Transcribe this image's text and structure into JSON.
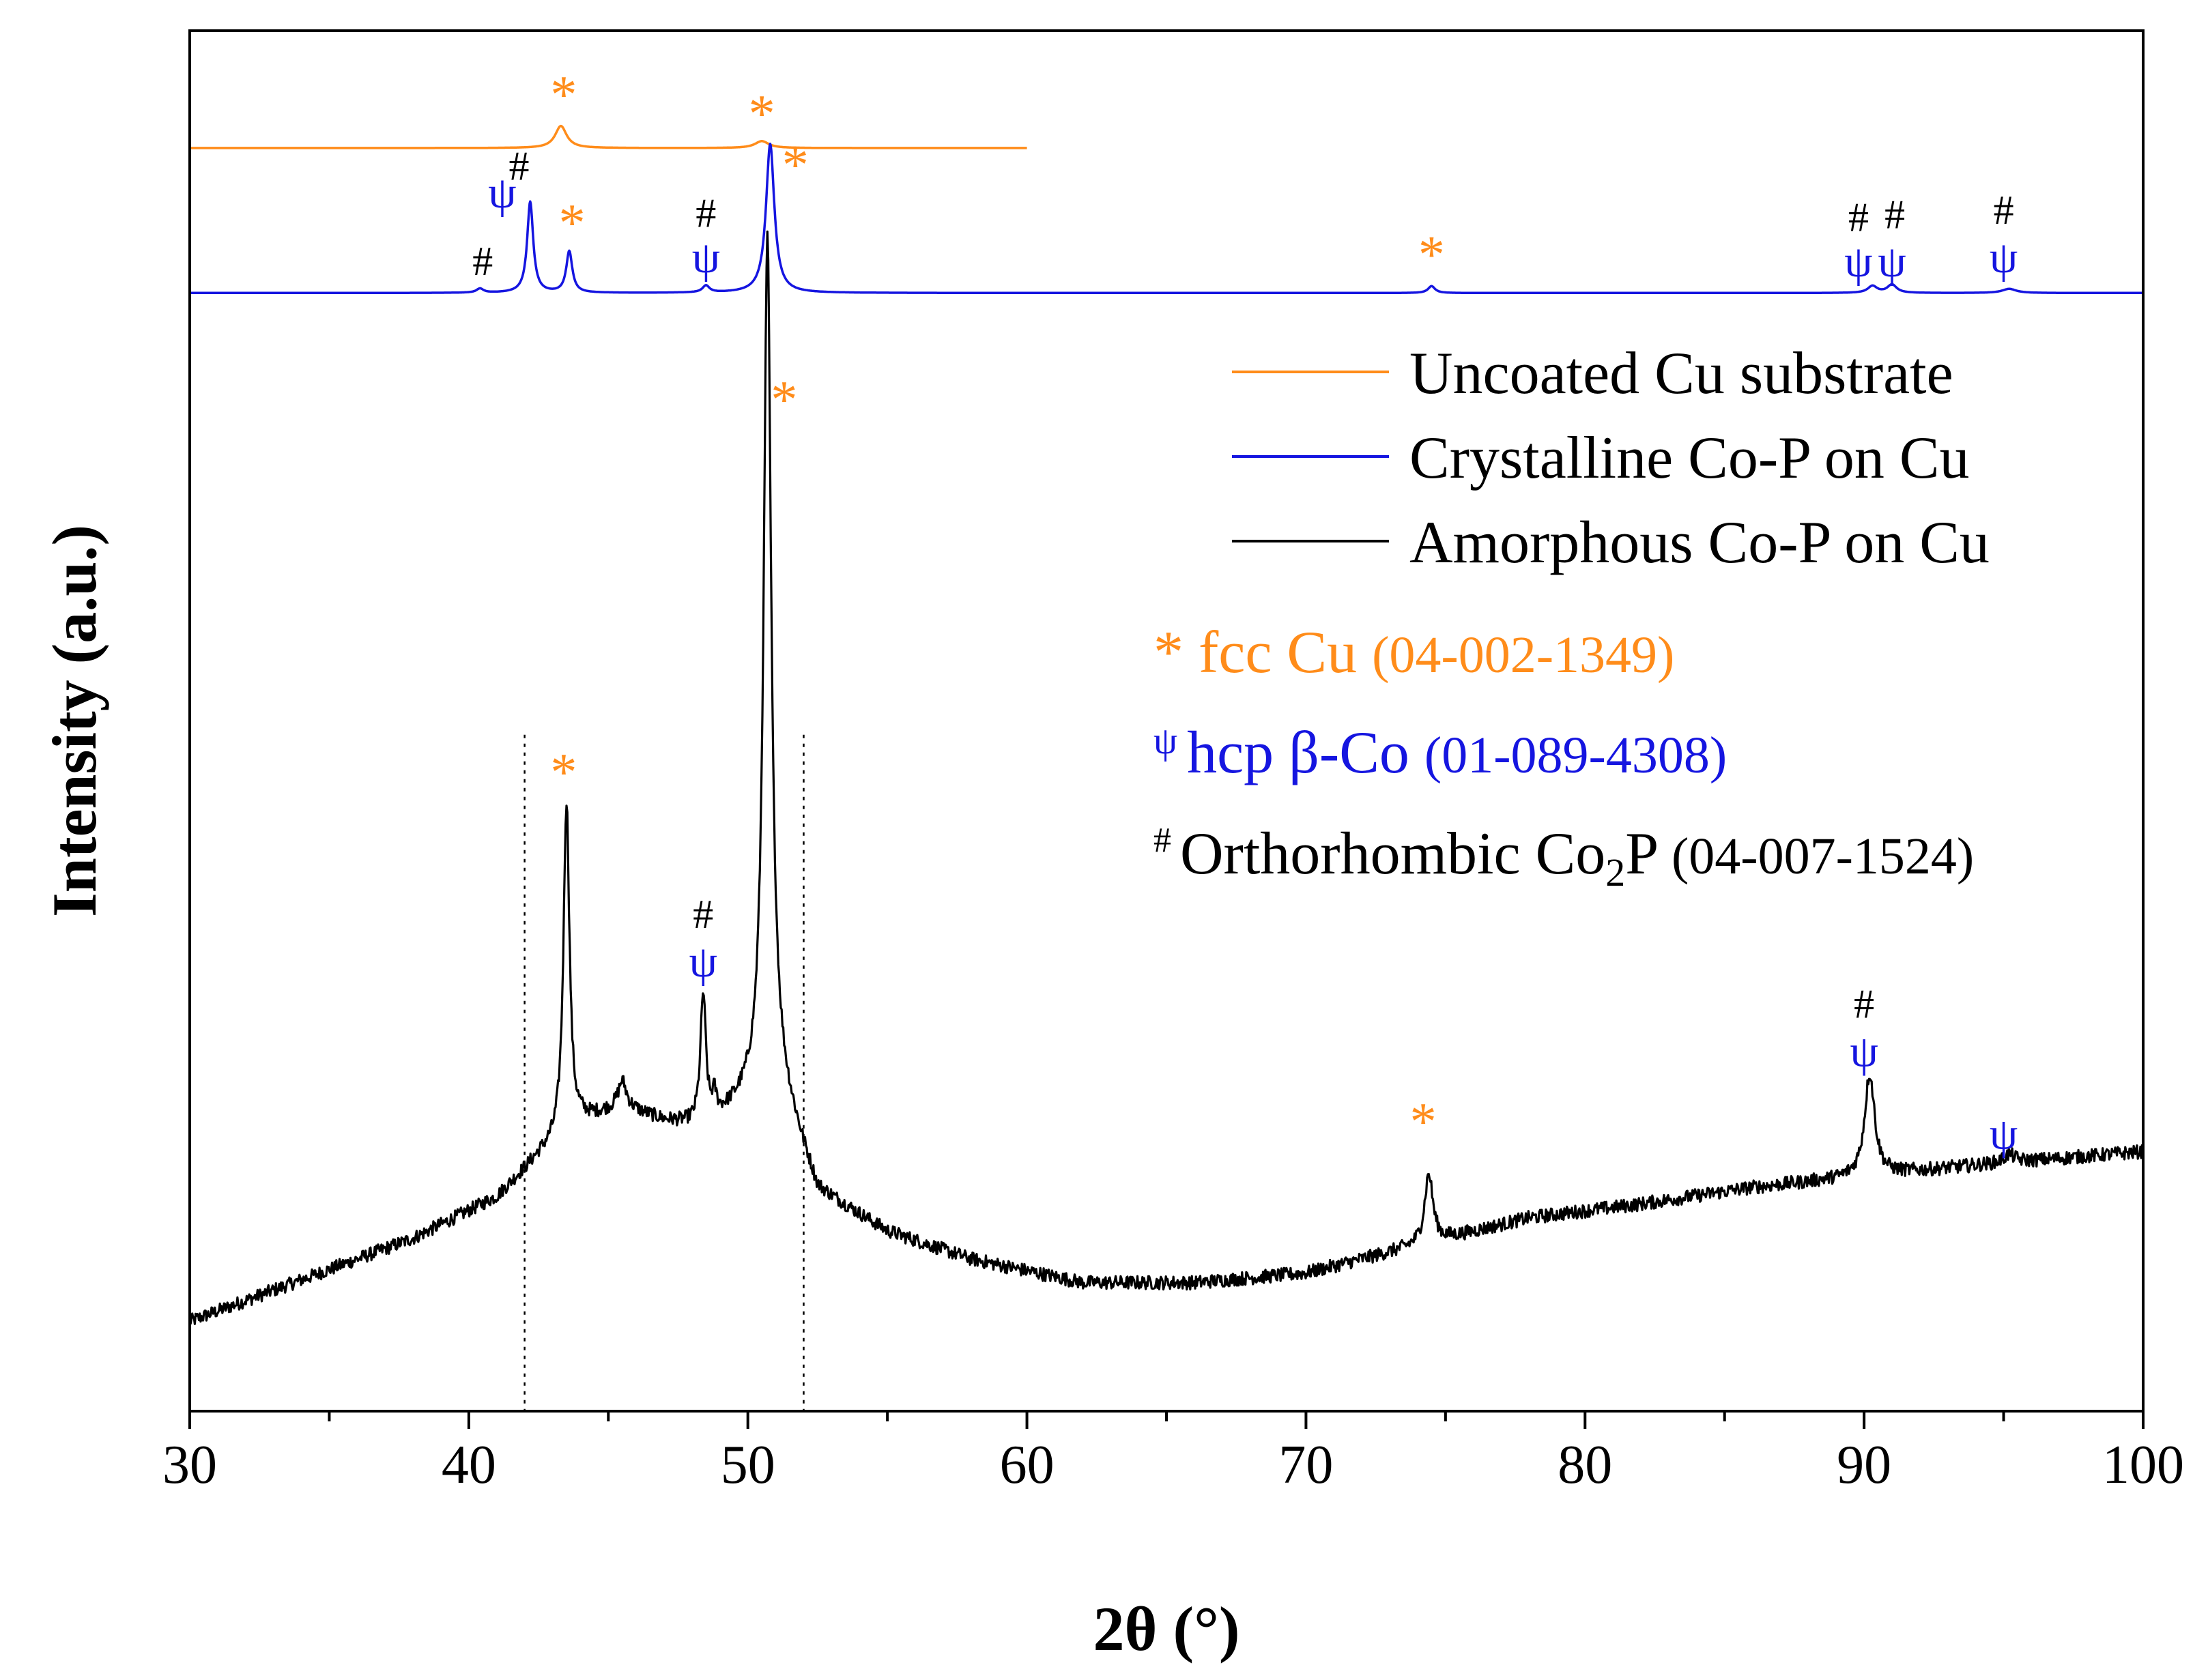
{
  "chart_data": {
    "type": "line",
    "title": "",
    "xlabel": "2θ (°)",
    "ylabel": "Intensity (a.u.)",
    "xlim": [
      30,
      100
    ],
    "x_ticks": [
      30,
      40,
      50,
      60,
      70,
      80,
      90,
      100
    ],
    "tick_labels": [
      "30",
      "40",
      "50",
      "60",
      "70",
      "80",
      "90",
      "100"
    ],
    "y_ticks_shown": false,
    "grid": false,
    "colors": {
      "cu": "#ff8c1a",
      "co": "#1515e0",
      "cop": "#000000"
    },
    "reference_lines": [
      42,
      52
    ],
    "series": [
      {
        "name": "Uncoated Cu substrate",
        "color": "#ff8c1a",
        "x_range": [
          30,
          60
        ],
        "baseline": 0.915,
        "peaks": [
          {
            "x": 43.3,
            "h": 0.016,
            "w": 0.25
          },
          {
            "x": 50.5,
            "h": 0.005,
            "w": 0.3
          }
        ]
      },
      {
        "name": "Crystalline Co-P on Cu",
        "color": "#1515e0",
        "x_range": [
          30,
          100
        ],
        "baseline": 0.81,
        "peaks": [
          {
            "x": 40.4,
            "h": 0.003,
            "w": 0.15
          },
          {
            "x": 42.2,
            "h": 0.066,
            "w": 0.13
          },
          {
            "x": 43.6,
            "h": 0.03,
            "w": 0.13
          },
          {
            "x": 48.5,
            "h": 0.005,
            "w": 0.15
          },
          {
            "x": 50.8,
            "h": 0.108,
            "w": 0.18
          },
          {
            "x": 74.5,
            "h": 0.005,
            "w": 0.15
          },
          {
            "x": 90.3,
            "h": 0.005,
            "w": 0.2
          },
          {
            "x": 91.0,
            "h": 0.006,
            "w": 0.2
          },
          {
            "x": 95.2,
            "h": 0.003,
            "w": 0.3
          }
        ]
      },
      {
        "name": "Amorphous Co-P on Cu",
        "color": "#000000",
        "x_range": [
          30,
          100
        ],
        "background": [
          [
            30,
            0.065
          ],
          [
            34,
            0.095
          ],
          [
            38,
            0.125
          ],
          [
            41,
            0.155
          ],
          [
            42.5,
            0.185
          ],
          [
            44,
            0.21
          ],
          [
            45.5,
            0.22
          ],
          [
            47,
            0.21
          ],
          [
            48.5,
            0.205
          ],
          [
            49.5,
            0.22
          ],
          [
            51,
            0.245
          ],
          [
            52.5,
            0.16
          ],
          [
            55,
            0.13
          ],
          [
            58,
            0.11
          ],
          [
            62,
            0.093
          ],
          [
            66,
            0.093
          ],
          [
            70,
            0.1
          ],
          [
            74,
            0.12
          ],
          [
            78,
            0.14
          ],
          [
            82,
            0.15
          ],
          [
            86,
            0.162
          ],
          [
            90,
            0.17
          ],
          [
            94,
            0.178
          ],
          [
            100,
            0.188
          ]
        ],
        "noise": 0.005,
        "peaks": [
          {
            "x": 43.5,
            "h": 0.24,
            "w": 0.13
          },
          {
            "x": 45.5,
            "h": 0.018,
            "w": 0.18
          },
          {
            "x": 48.4,
            "h": 0.095,
            "w": 0.12
          },
          {
            "x": 48.8,
            "h": 0.015,
            "w": 0.1
          },
          {
            "x": 50.7,
            "h": 0.61,
            "w": 0.16
          },
          {
            "x": 74.4,
            "h": 0.05,
            "w": 0.18
          },
          {
            "x": 90.2,
            "h": 0.074,
            "w": 0.22
          },
          {
            "x": 95.2,
            "h": 0.006,
            "w": 0.25
          }
        ]
      }
    ],
    "peak_markers": [
      {
        "x": 43.4,
        "y": 0.941,
        "symbol": "*",
        "phase": "cu"
      },
      {
        "x": 50.5,
        "y": 0.927,
        "symbol": "*",
        "phase": "cu"
      },
      {
        "x": 51.7,
        "y": 0.89,
        "symbol": "*",
        "phase": "cu"
      },
      {
        "x": 41.2,
        "y": 0.872,
        "symbol": "ψ",
        "phase": "co"
      },
      {
        "x": 41.8,
        "y": 0.892,
        "symbol": "#",
        "phase": "cop"
      },
      {
        "x": 43.7,
        "y": 0.848,
        "symbol": "*",
        "phase": "cu"
      },
      {
        "x": 40.5,
        "y": 0.823,
        "symbol": "#",
        "phase": "cop"
      },
      {
        "x": 48.5,
        "y": 0.858,
        "symbol": "#",
        "phase": "cop"
      },
      {
        "x": 48.5,
        "y": 0.825,
        "symbol": "ψ",
        "phase": "co"
      },
      {
        "x": 74.5,
        "y": 0.825,
        "symbol": "*",
        "phase": "cu"
      },
      {
        "x": 89.8,
        "y": 0.855,
        "symbol": "#",
        "phase": "cop"
      },
      {
        "x": 89.8,
        "y": 0.822,
        "symbol": "ψ",
        "phase": "co"
      },
      {
        "x": 91.1,
        "y": 0.857,
        "symbol": "#",
        "phase": "cop"
      },
      {
        "x": 91.0,
        "y": 0.822,
        "symbol": "ψ",
        "phase": "co"
      },
      {
        "x": 95.0,
        "y": 0.86,
        "symbol": "#",
        "phase": "cop"
      },
      {
        "x": 95.0,
        "y": 0.825,
        "symbol": "ψ",
        "phase": "co"
      },
      {
        "x": 51.3,
        "y": 0.72,
        "symbol": "*",
        "phase": "cu"
      },
      {
        "x": 43.4,
        "y": 0.45,
        "symbol": "*",
        "phase": "cu"
      },
      {
        "x": 48.4,
        "y": 0.35,
        "symbol": "#",
        "phase": "cop"
      },
      {
        "x": 48.4,
        "y": 0.315,
        "symbol": "ψ",
        "phase": "co"
      },
      {
        "x": 74.2,
        "y": 0.197,
        "symbol": "*",
        "phase": "cu"
      },
      {
        "x": 90.0,
        "y": 0.285,
        "symbol": "#",
        "phase": "cop"
      },
      {
        "x": 90.0,
        "y": 0.25,
        "symbol": "ψ",
        "phase": "co"
      },
      {
        "x": 95.0,
        "y": 0.19,
        "symbol": "ψ",
        "phase": "co"
      }
    ],
    "legend": {
      "position": "upper-right",
      "lines": [
        {
          "label": "Uncoated Cu substrate",
          "color": "#ff8c1a"
        },
        {
          "label": "Crystalline Co-P on Cu",
          "color": "#1515e0"
        },
        {
          "label": "Amorphous Co-P on Cu",
          "color": "#000000"
        }
      ],
      "phases": [
        {
          "symbol": "*",
          "name": "fcc Cu",
          "ref": "(04-002-1349)",
          "color": "#ff8c1a"
        },
        {
          "symbol": "ψ",
          "name": "hcp β-Co",
          "ref": "(01-089-4308)",
          "color": "#1515e0"
        },
        {
          "symbol": "#",
          "name": "Orthorhombic Co",
          "name_sub": "2",
          "name_tail": "P",
          "ref": "(04-007-1524)",
          "color": "#000000"
        }
      ]
    }
  }
}
